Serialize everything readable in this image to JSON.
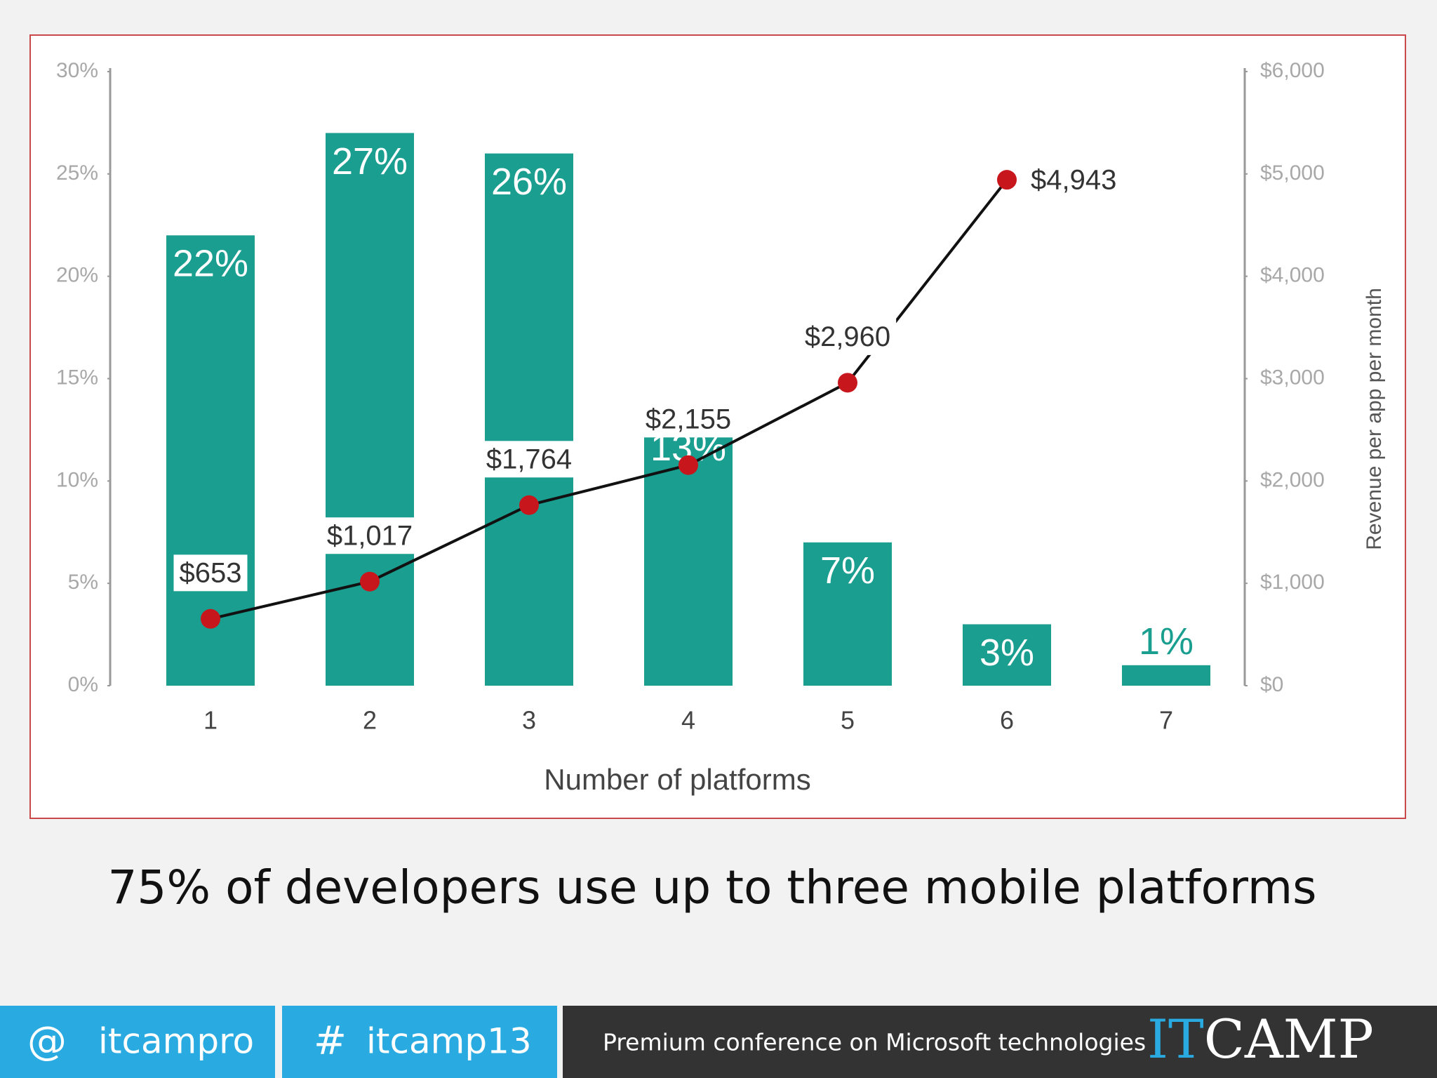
{
  "chart_data": {
    "type": "combo",
    "categories": [
      "1",
      "2",
      "3",
      "4",
      "5",
      "6",
      "7"
    ],
    "series": [
      {
        "type": "bar",
        "color": "#1a9e8f",
        "values": [
          22,
          27,
          26,
          13,
          7,
          3,
          1
        ],
        "value_labels": [
          "22%",
          "27%",
          "26%",
          "13%",
          "7%",
          "3%",
          "1%"
        ]
      },
      {
        "type": "line",
        "axis": "y2",
        "color": "#c8161d",
        "values": [
          653,
          1017,
          1764,
          2155,
          2960,
          4943,
          null
        ],
        "value_labels": [
          "$653",
          "$1,017",
          "$1,764",
          "$2,155",
          "$2,960",
          "$4,943",
          null
        ]
      }
    ],
    "xlabel": "Number of platforms",
    "y2label": "Revenue per app per month",
    "ylim": [
      0,
      30
    ],
    "yticks": [
      {
        "value": 0,
        "label": "0%"
      },
      {
        "value": 5,
        "label": "5%"
      },
      {
        "value": 10,
        "label": "10%"
      },
      {
        "value": 15,
        "label": "15%"
      },
      {
        "value": 20,
        "label": "20%"
      },
      {
        "value": 25,
        "label": "25%"
      },
      {
        "value": 30,
        "label": "30%"
      }
    ],
    "y2lim": [
      0,
      6000
    ],
    "y2ticks": [
      {
        "value": 0,
        "label": "$0"
      },
      {
        "value": 1000,
        "label": "$1,000"
      },
      {
        "value": 2000,
        "label": "$2,000"
      },
      {
        "value": 3000,
        "label": "$3,000"
      },
      {
        "value": 4000,
        "label": "$4,000"
      },
      {
        "value": 5000,
        "label": "$5,000"
      },
      {
        "value": 6000,
        "label": "$6,000"
      }
    ],
    "grid": false
  },
  "caption": "75% of developers use up to three mobile platforms",
  "footer": {
    "twitter_symbol": "@",
    "twitter": "itcampro",
    "hashtag_symbol": "#",
    "hashtag": "itcamp13",
    "tagline": "Premium conference on Microsoft technologies",
    "logo": [
      "IT",
      "CAMP"
    ]
  }
}
